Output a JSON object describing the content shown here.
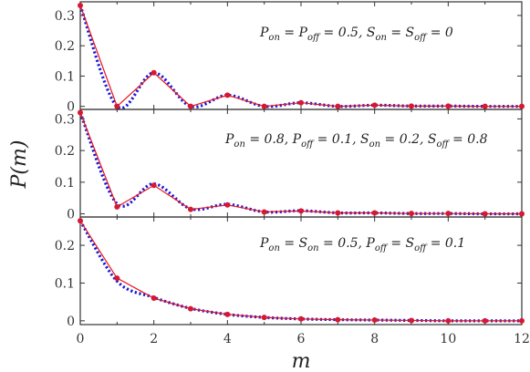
{
  "chart_data": {
    "type": "line",
    "xlabel": "m",
    "ylabel": "P(m)",
    "xlim": [
      0,
      12
    ],
    "x_ticks": [
      "0",
      "2",
      "4",
      "6",
      "8",
      "10",
      "12"
    ],
    "colors": {
      "solid": "#e8141c",
      "dotted": "#1818d8",
      "points": "#d81830"
    },
    "panels": [
      {
        "annotation": "P_on = P_off = 0.5, S_on = S_off = 0",
        "ylim": [
          -0.01,
          0.345
        ],
        "y_ticks": [
          "0",
          "0.1",
          "0.2",
          "0.3"
        ],
        "y_tick_values": [
          0,
          0.1,
          0.2,
          0.3
        ],
        "points": [
          0.333,
          0.0,
          0.111,
          0.0,
          0.037,
          0.0,
          0.012,
          0.0,
          0.004,
          0.001,
          0.001,
          0.0,
          0.0
        ],
        "smooth": [
          0.333,
          0.0,
          0.111,
          0.0,
          0.037,
          0.0,
          0.012,
          0.0,
          0.004,
          0.001,
          0.001,
          0.0,
          0.0
        ]
      },
      {
        "annotation": "P_on = 0.8, P_off = 0.1, S_on = 0.2, S_off = 0.8",
        "ylim": [
          -0.01,
          0.33
        ],
        "y_ticks": [
          "0",
          "0.1",
          "0.2",
          "0.3"
        ],
        "y_tick_values": [
          0,
          0.1,
          0.2,
          0.3
        ],
        "points": [
          0.32,
          0.022,
          0.09,
          0.014,
          0.028,
          0.006,
          0.009,
          0.003,
          0.003,
          0.001,
          0.001,
          0.0,
          0.0
        ],
        "smooth": [
          0.32,
          0.032,
          0.095,
          0.016,
          0.03,
          0.006,
          0.01,
          0.003,
          0.003,
          0.001,
          0.001,
          0.0,
          0.0
        ]
      },
      {
        "annotation": "P_on = S_on = 0.5, P_off = S_off = 0.1",
        "ylim": [
          -0.01,
          0.275
        ],
        "y_ticks": [
          "0",
          "0.1",
          "0.2"
        ],
        "y_tick_values": [
          0,
          0.1,
          0.2
        ],
        "points": [
          0.265,
          0.113,
          0.06,
          0.032,
          0.017,
          0.009,
          0.005,
          0.003,
          0.002,
          0.001,
          0.0,
          0.0,
          0.0
        ],
        "smooth": [
          0.265,
          0.105,
          0.062,
          0.033,
          0.017,
          0.009,
          0.005,
          0.003,
          0.002,
          0.001,
          0.0,
          0.0,
          0.0
        ]
      }
    ]
  }
}
